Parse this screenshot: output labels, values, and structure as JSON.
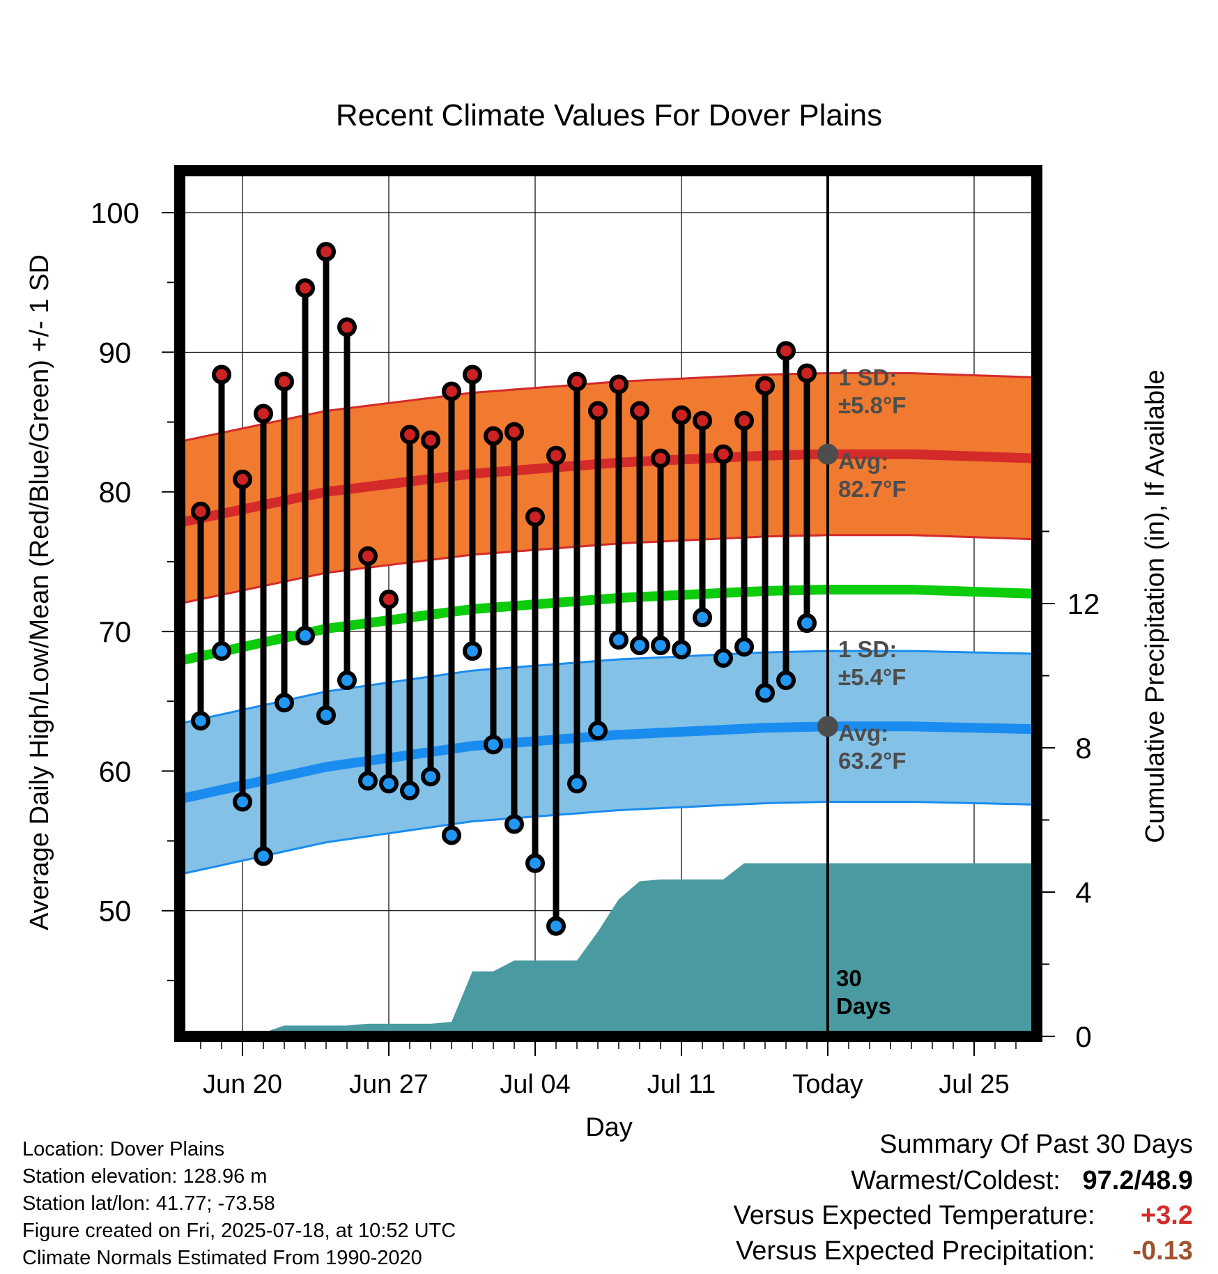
{
  "chart_data": {
    "type": "line",
    "title": "Recent Climate Values For Dover Plains",
    "xlabel": "Day",
    "ylabel": "Average Daily High/Low/Mean (Red/Blue/Green) +/- 1 SD",
    "ylabel_right": "Cumulative Precipitation (in), If Available",
    "x_tick_labels": [
      "Jun 20",
      "Jun 27",
      "Jul 04",
      "Jul 11",
      "Today",
      "Jul 25"
    ],
    "y_ticks": [
      "100",
      "90",
      "80",
      "70",
      "60",
      "50"
    ],
    "y2_ticks": [
      "12",
      "8",
      "4",
      "0"
    ],
    "ylim": [
      41,
      103
    ],
    "y2lim": [
      0,
      24
    ],
    "x_range_days": [
      "2025-06-17",
      "2025-07-28"
    ],
    "today": "2025-07-18",
    "today_days_label": "30\nDays",
    "daily_observations": {
      "dates": [
        "2025-06-18",
        "2025-06-19",
        "2025-06-20",
        "2025-06-21",
        "2025-06-22",
        "2025-06-23",
        "2025-06-24",
        "2025-06-25",
        "2025-06-26",
        "2025-06-27",
        "2025-06-28",
        "2025-06-29",
        "2025-06-30",
        "2025-07-01",
        "2025-07-02",
        "2025-07-03",
        "2025-07-04",
        "2025-07-05",
        "2025-07-06",
        "2025-07-07",
        "2025-07-08",
        "2025-07-09",
        "2025-07-10",
        "2025-07-11",
        "2025-07-12",
        "2025-07-13",
        "2025-07-14",
        "2025-07-15",
        "2025-07-16",
        "2025-07-17"
      ],
      "high": [
        78.6,
        88.4,
        80.9,
        85.6,
        87.9,
        94.6,
        97.2,
        91.8,
        75.4,
        72.3,
        84.1,
        83.7,
        87.2,
        88.4,
        84.0,
        84.3,
        78.2,
        82.6,
        87.9,
        85.8,
        87.7,
        85.8,
        82.4,
        85.5,
        85.1,
        82.7,
        85.1,
        87.6,
        90.1,
        88.5
      ],
      "low": [
        63.6,
        68.6,
        57.8,
        53.9,
        64.9,
        69.7,
        64.0,
        66.5,
        59.3,
        59.1,
        58.6,
        59.6,
        55.4,
        68.6,
        61.9,
        56.2,
        53.4,
        48.9,
        59.1,
        62.9,
        69.4,
        69.0,
        69.0,
        68.7,
        71.0,
        68.1,
        68.9,
        65.6,
        66.5,
        70.6
      ]
    },
    "normals": {
      "dates": [
        "2025-06-17",
        "2025-06-24",
        "2025-07-01",
        "2025-07-08",
        "2025-07-15",
        "2025-07-18",
        "2025-07-22",
        "2025-07-28"
      ],
      "high_avg": [
        77.8,
        80.0,
        81.3,
        82.1,
        82.6,
        82.7,
        82.7,
        82.4
      ],
      "low_avg": [
        58.0,
        60.3,
        61.8,
        62.6,
        63.1,
        63.2,
        63.2,
        63.0
      ],
      "mean_avg": [
        67.9,
        70.2,
        71.6,
        72.4,
        72.9,
        73.0,
        73.0,
        72.7
      ],
      "high_sd": 5.8,
      "low_sd": 5.4
    },
    "cumulative_precipitation": {
      "dates": [
        "2025-06-17",
        "2025-06-18",
        "2025-06-21",
        "2025-06-22",
        "2025-06-25",
        "2025-06-26",
        "2025-06-29",
        "2025-06-30",
        "2025-07-01",
        "2025-07-02",
        "2025-07-03",
        "2025-07-04",
        "2025-07-05",
        "2025-07-06",
        "2025-07-07",
        "2025-07-08",
        "2025-07-09",
        "2025-07-10",
        "2025-07-11",
        "2025-07-12",
        "2025-07-13",
        "2025-07-14",
        "2025-07-15",
        "2025-07-16",
        "2025-07-17",
        "2025-07-18",
        "2025-07-28"
      ],
      "inches": [
        0,
        0.1,
        0.1,
        0.3,
        0.3,
        0.35,
        0.35,
        0.4,
        1.8,
        1.8,
        2.1,
        2.1,
        2.1,
        2.1,
        2.9,
        3.8,
        4.3,
        4.35,
        4.35,
        4.35,
        4.35,
        4.8,
        4.8,
        4.8,
        4.8,
        4.8,
        4.8
      ]
    },
    "annotations": {
      "high_sd_label": "1 SD:",
      "high_sd_value": "±5.8°F",
      "high_avg_label": "Avg:",
      "high_avg_value": "82.7°F",
      "low_sd_label": "1 SD:",
      "low_sd_value": "±5.4°F",
      "low_avg_label": "Avg:",
      "low_avg_value": "63.2°F"
    },
    "colors": {
      "high_band": "#f07a30",
      "high_line": "#d42a2a",
      "low_band": "#84c1e6",
      "low_line": "#1a8cf0",
      "mean_line": "#0ccc0c",
      "precip": "#4a9aa2",
      "high_dot": "#cc2222",
      "low_dot": "#2196f3",
      "today_dot": "#4d4d4d"
    },
    "grid": true
  },
  "info": {
    "location": "Location: Dover Plains",
    "elevation": "Station elevation: 128.96 m",
    "latlon": "Station lat/lon: 41.77; -73.58",
    "created": "Figure created on Fri, 2025-07-18, at 10:52 UTC",
    "normals": "Climate Normals Estimated From 1990-2020"
  },
  "summary": {
    "title": "Summary Of Past 30 Days",
    "warm_cold_label": "Warmest/Coldest:",
    "warm_cold_value": "97.2/48.9",
    "temp_label": "Versus Expected Temperature:",
    "temp_value": "+3.2",
    "temp_color": "#d42a2a",
    "precip_label": "Versus Expected Precipitation:",
    "precip_value": "-0.13",
    "precip_color": "#a0522d"
  }
}
